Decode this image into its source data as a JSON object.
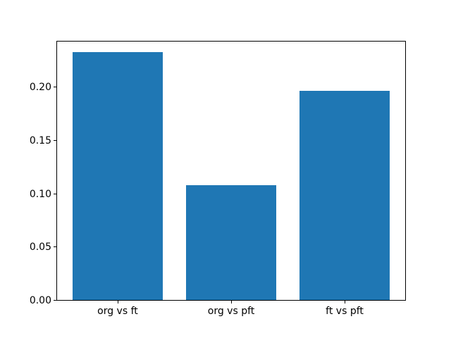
{
  "figure": {
    "background": "#ffffff"
  },
  "chart_data": {
    "type": "bar",
    "categories": [
      "org vs ft",
      "org vs pft",
      "ft vs pft"
    ],
    "values": [
      0.233,
      0.108,
      0.197
    ],
    "title": "",
    "xlabel": "",
    "ylabel": "",
    "ylim": [
      0,
      0.2436
    ],
    "yticks": [
      0.0,
      0.05,
      0.1,
      0.15,
      0.2
    ],
    "ytick_labels": [
      "0.00",
      "0.05",
      "0.10",
      "0.15",
      "0.20"
    ],
    "bar_color": "#1f77b4",
    "axis_color": "#000000",
    "bar_width_fraction": 0.8,
    "grid": false,
    "legend_position": "none"
  }
}
